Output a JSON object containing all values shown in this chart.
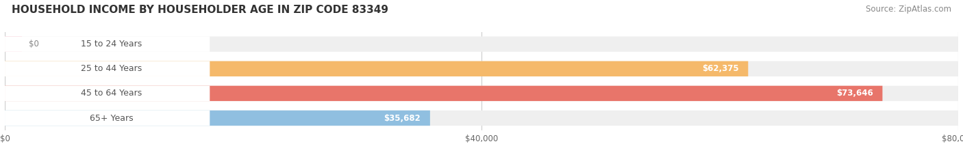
{
  "title": "HOUSEHOLD INCOME BY HOUSEHOLDER AGE IN ZIP CODE 83349",
  "source": "Source: ZipAtlas.com",
  "categories": [
    "15 to 24 Years",
    "25 to 44 Years",
    "45 to 64 Years",
    "65+ Years"
  ],
  "values": [
    0,
    62375,
    73646,
    35682
  ],
  "bar_colors": [
    "#f7a8bc",
    "#f5b96a",
    "#e8756a",
    "#90bfe0"
  ],
  "bar_bg_color": "#efefef",
  "label_text_colors": [
    "#555555",
    "#555555",
    "#555555",
    "#555555"
  ],
  "xmax": 80000,
  "xticks": [
    0,
    40000,
    80000
  ],
  "xticklabels": [
    "$0",
    "$40,000",
    "$80,000"
  ],
  "value_labels": [
    "$0",
    "$62,375",
    "$73,646",
    "$35,682"
  ],
  "value_label_colors_inside": [
    "white",
    "white",
    "white",
    "white"
  ],
  "background_color": "#ffffff",
  "title_fontsize": 11,
  "source_fontsize": 8.5,
  "bar_label_fontsize": 9,
  "value_label_fontsize": 8.5,
  "tick_fontsize": 8.5,
  "bar_height": 0.62,
  "bar_gap": 0.15
}
